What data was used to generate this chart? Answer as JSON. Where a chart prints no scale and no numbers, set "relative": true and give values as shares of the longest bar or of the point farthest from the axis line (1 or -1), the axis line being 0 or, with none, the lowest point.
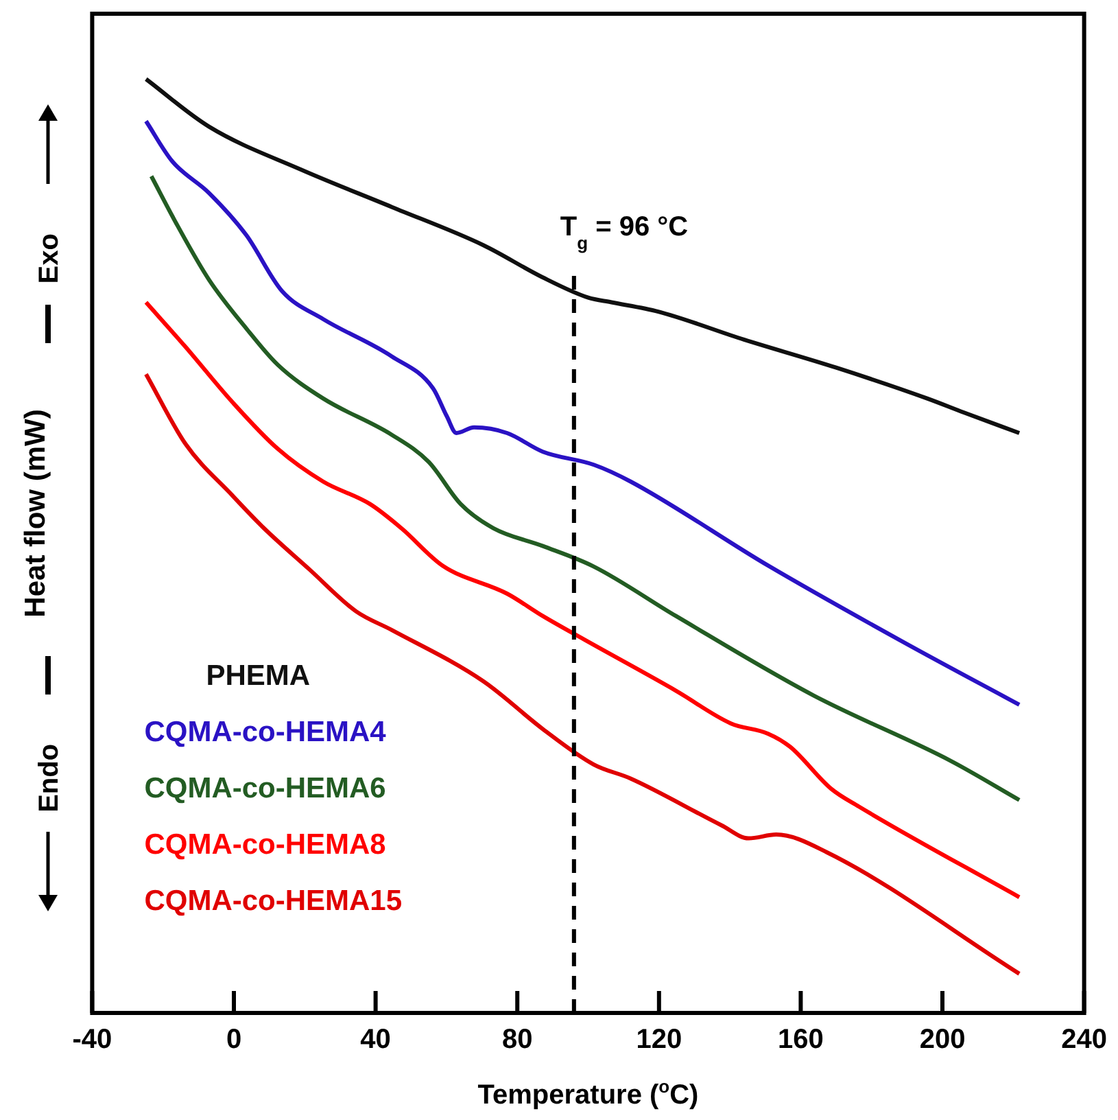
{
  "chart_data": {
    "type": "line",
    "xlabel": "Temperature ($^{o}$C)",
    "ylabel": "Heat flow (mW)",
    "relative": true,
    "xlim": [
      -40,
      240
    ],
    "xticks": [
      -40,
      0,
      40,
      80,
      120,
      160,
      200,
      240
    ],
    "legend": "bottom left",
    "marker": "none",
    "line_style": "solid",
    "grid": false,
    "annotations": [
      "Exo",
      "Endo"
    ],
    "ref_lines": [
      {
        "axis": "x",
        "value": 96,
        "label": "T$_{g}$ = 96 °C",
        "color": "#000000",
        "line_style": "dashed"
      }
    ],
    "series": [
      {
        "name": "PHEMA",
        "color": "#101010",
        "x": [
          -24.8,
          -7,
          19,
          44.6,
          70.5,
          87,
          100,
          106.6,
          119.8,
          144,
          170,
          195.7,
          206,
          221.7
        ],
        "values": [
          1,
          0.949,
          0.903,
          0.863,
          0.822,
          0.788,
          0.766,
          0.761,
          0.751,
          0.721,
          0.691,
          0.658,
          0.643,
          0.621
        ]
      },
      {
        "name": "CQMA-co-HEMA4",
        "color": "#2a12c4",
        "x": [
          -24.8,
          -17.4,
          -7,
          3.5,
          13.6,
          25.2,
          44.6,
          56.2,
          60.1,
          62.8,
          67.8,
          77.1,
          87.2,
          101.6,
          112,
          150.8,
          189.5,
          221.7
        ],
        "values": [
          0.955,
          0.912,
          0.878,
          0.833,
          0.773,
          0.743,
          0.703,
          0.669,
          0.639,
          0.621,
          0.627,
          0.621,
          0.601,
          0.587,
          0.569,
          0.479,
          0.396,
          0.33
        ]
      },
      {
        "name": "CQMA-co-HEMA6",
        "color": "#235c23",
        "x": [
          -23.3,
          -15.9,
          -7,
          3.5,
          12.4,
          25.2,
          44.6,
          55,
          64,
          73.3,
          87.2,
          101.6,
          124.8,
          163.6,
          202.3,
          221.7
        ],
        "values": [
          0.896,
          0.843,
          0.785,
          0.733,
          0.694,
          0.658,
          0.619,
          0.59,
          0.545,
          0.519,
          0.5,
          0.478,
          0.425,
          0.34,
          0.27,
          0.228
        ]
      },
      {
        "name": "CQMA-co-HEMA8",
        "color": "#ff0000",
        "x": [
          -24.8,
          -13.6,
          -0.4,
          12.4,
          25.2,
          38.4,
          47.3,
          58.9,
          77.1,
          87.2,
          98.8,
          124.8,
          140.3,
          150.8,
          157,
          168.6,
          176.4,
          221.7
        ],
        "values": [
          0.761,
          0.713,
          0.654,
          0.604,
          0.569,
          0.545,
          0.519,
          0.479,
          0.449,
          0.425,
          0.4,
          0.345,
          0.31,
          0.299,
          0.285,
          0.24,
          0.221,
          0.124
        ]
      },
      {
        "name": "CQMA-co-HEMA15",
        "color": "#e00000",
        "x": [
          -24.8,
          -13.6,
          -0.4,
          8.5,
          21.3,
          34.5,
          44.6,
          70.5,
          87.2,
          101.6,
          112,
          137.6,
          145.3,
          153.1,
          167.4,
          221.7
        ],
        "values": [
          0.684,
          0.609,
          0.554,
          0.519,
          0.475,
          0.43,
          0.41,
          0.355,
          0.304,
          0.266,
          0.251,
          0.201,
          0.187,
          0.191,
          0.172,
          0.042
        ]
      }
    ]
  }
}
